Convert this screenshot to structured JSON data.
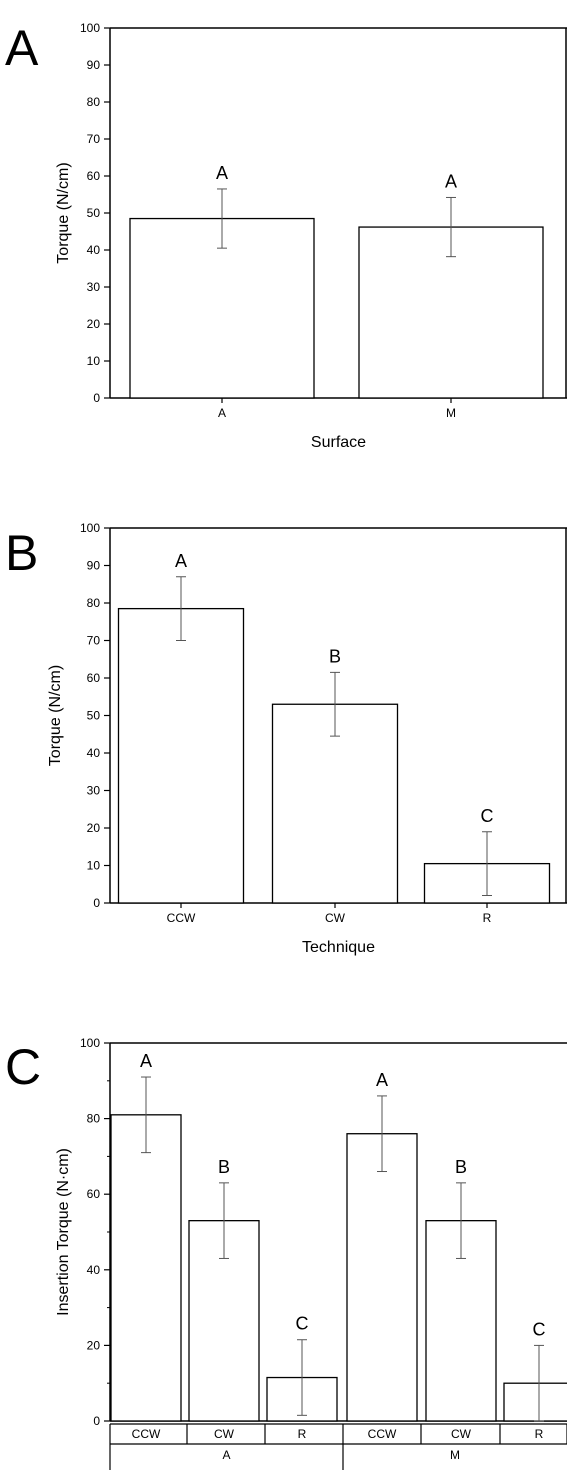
{
  "chart_data": [
    {
      "type": "bar",
      "panel": "A",
      "categories": [
        "A",
        "M"
      ],
      "values": [
        48.5,
        46.2
      ],
      "errors": [
        8.0,
        8.0
      ],
      "significance": [
        "A",
        "A"
      ],
      "xlabel": "Surface",
      "ylabel": "Torque (N/cm)",
      "ylim": [
        0,
        100
      ],
      "yticks": [
        0,
        10,
        20,
        30,
        40,
        50,
        60,
        70,
        80,
        90,
        100
      ],
      "grid": false
    },
    {
      "type": "bar",
      "panel": "B",
      "categories": [
        "CCW",
        "CW",
        "R"
      ],
      "values": [
        78.5,
        53.0,
        10.5
      ],
      "errors": [
        8.5,
        8.5,
        8.5
      ],
      "significance": [
        "A",
        "B",
        "C"
      ],
      "xlabel": "Technique",
      "ylabel": "Torque (N/cm)",
      "ylim": [
        0,
        100
      ],
      "yticks": [
        0,
        10,
        20,
        30,
        40,
        50,
        60,
        70,
        80,
        90,
        100
      ],
      "grid": false
    },
    {
      "type": "bar",
      "panel": "C",
      "groups": [
        "A",
        "M"
      ],
      "categories": [
        "CCW",
        "CW",
        "R",
        "CCW",
        "CW",
        "R"
      ],
      "values": [
        81,
        53,
        11.5,
        76,
        53,
        10
      ],
      "errors": [
        10,
        10,
        10,
        10,
        10,
        10
      ],
      "significance": [
        "A",
        "B",
        "C",
        "A",
        "B",
        "C"
      ],
      "xlabel": "",
      "ylabel": "Insertion Torque (N·cm)",
      "ylim": [
        0,
        100
      ],
      "yticks": [
        0,
        20,
        40,
        60,
        80,
        100
      ],
      "grid": false
    }
  ]
}
